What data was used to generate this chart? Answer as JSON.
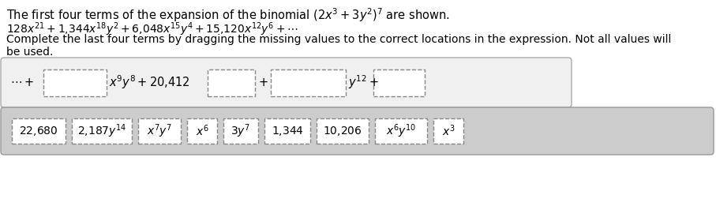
{
  "title": "The first four terms of the expansion of the binomial $(2x^3 + 3y^2)^7$ are shown.",
  "expansion": "$128x^{21} + 1{,}344x^{18}y^2 + 6{,}048x^{15}y^4 + 15{,}120x^{12}y^6 + \\cdots$",
  "instruction1": "Complete the last four terms by dragging the missing values to the correct locations in the expression. Not all values will",
  "instruction2": "be used.",
  "expr_prefix": "$\\cdots +$",
  "expr_mid1": "$x^9y^8 + 20{,}412$",
  "expr_mid2": "$+$",
  "expr_mid3": "$y^{12} +$",
  "drag_items_math": [
    "$22{,}680$",
    "$2{,}187y^{14}$",
    "$x^7y^7$",
    "$x^6$",
    "$3y^7$",
    "$1{,}344$",
    "$10{,}206$",
    "$x^6y^{10}$",
    "$x^3$"
  ],
  "drag_item_widths": [
    68,
    76,
    54,
    38,
    44,
    58,
    66,
    66,
    38
  ],
  "bg_color": "#ffffff",
  "expr_box_bg": "#f0f0f0",
  "expr_box_border": "#aaaaaa",
  "drag_box_bg": "#cccccc",
  "drag_box_border": "#999999",
  "item_box_bg": "#ffffff",
  "item_box_border": "#888888",
  "dashed_box_bg": "#ffffff",
  "dashed_box_border": "#888888",
  "font_size_title": 10.5,
  "font_size_body": 10.0,
  "font_size_expr": 10.5,
  "font_size_drag": 10.0
}
